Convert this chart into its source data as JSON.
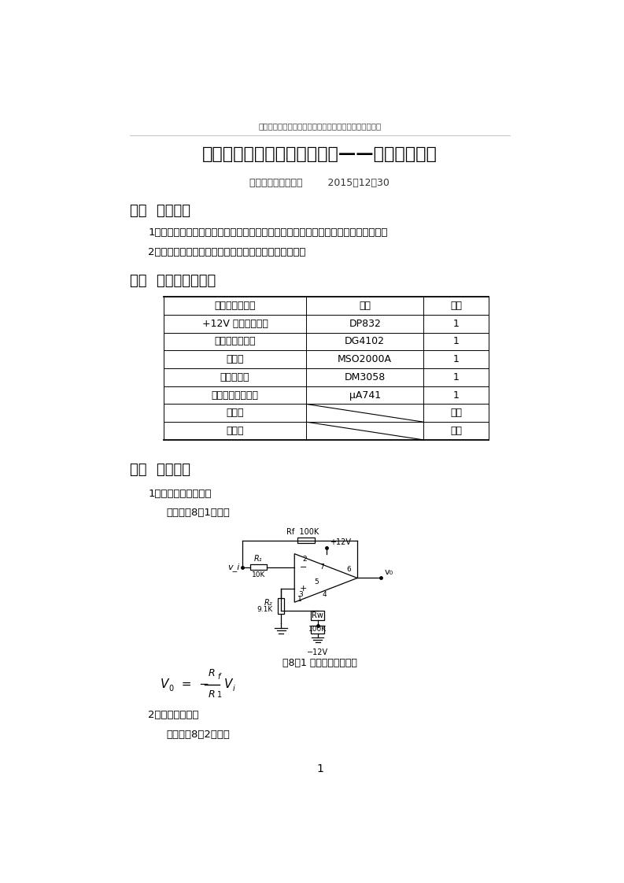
{
  "page_width": 7.93,
  "page_height": 11.22,
  "bg_color": "#ffffff",
  "header_text": "模电实验八集成运放基本应用之一模拟运算电路实验报告",
  "title": "实验八集成运放基本应用之一——模拟运算电路",
  "subtitle": "班级：姓名：学号：        2015、12、30",
  "section1_title": "一、  实验目的",
  "section1_item1": "1、研究由集成运算放大电路组成的比例、加法、减法与积分等基本运算电路的功能。",
  "section1_item2": "2、了解运算放大电路在实际应用时应考虑的一些问题。",
  "section2_title": "二、  实验仪器及器件",
  "table_headers": [
    "仪器及器件名称",
    "型号",
    "数量"
  ],
  "table_rows": [
    [
      "+12V 直流稳压电源",
      "DP832",
      "1"
    ],
    [
      "函数信号发生器",
      "DG4102",
      "1"
    ],
    [
      "示波器",
      "MSO2000A",
      "1"
    ],
    [
      "数字万用表",
      "DM3058",
      "1"
    ],
    [
      "集成运算放大电路",
      "μA741",
      "1"
    ],
    [
      "电阻器",
      "",
      "若干"
    ],
    [
      "电容器",
      "",
      "若干"
    ]
  ],
  "section3_title": "三、  实验原理",
  "section3_sub1": "1、反相比例运算电路",
  "section3_sub1_desc": "电路如图8－1所示。",
  "circuit_caption": "图8－1 反相比例运算电路",
  "section3_sub2": "2、反相加法电路",
  "section3_sub2_desc": "电路如图8－2所示。",
  "page_number": "1",
  "header_fontsize": 7.5,
  "title_fontsize": 16,
  "subtitle_fontsize": 9,
  "section_fontsize": 13,
  "body_fontsize": 9.5,
  "table_fontsize": 9,
  "caption_fontsize": 9
}
